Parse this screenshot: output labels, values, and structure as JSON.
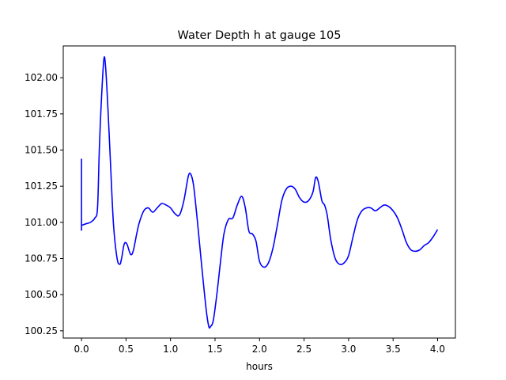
{
  "chart_data": {
    "type": "line",
    "title": "Water Depth h at gauge 105",
    "xlabel": "hours",
    "ylabel": "",
    "xlim": [
      -0.205,
      4.2
    ],
    "ylim": [
      100.2,
      102.22
    ],
    "xticks": [
      0.0,
      0.5,
      1.0,
      1.5,
      2.0,
      2.5,
      3.0,
      3.5,
      4.0
    ],
    "xtick_labels": [
      "0.0",
      "0.5",
      "1.0",
      "1.5",
      "2.0",
      "2.5",
      "3.0",
      "3.5",
      "4.0"
    ],
    "yticks": [
      100.25,
      100.5,
      100.75,
      101.0,
      101.25,
      101.5,
      101.75,
      102.0
    ],
    "ytick_labels": [
      "100.25",
      "100.50",
      "100.75",
      "101.00",
      "101.25",
      "101.50",
      "101.75",
      "102.00"
    ],
    "grid": false,
    "legend": "none",
    "series": [
      {
        "color": "#0000ff",
        "x": [
          0.0,
          0.0,
          0.005,
          0.05,
          0.1,
          0.15,
          0.18,
          0.2,
          0.22,
          0.25,
          0.27,
          0.3,
          0.33,
          0.36,
          0.4,
          0.43,
          0.45,
          0.48,
          0.51,
          0.55,
          0.58,
          0.62,
          0.65,
          0.7,
          0.75,
          0.8,
          0.85,
          0.9,
          0.95,
          1.0,
          1.05,
          1.1,
          1.15,
          1.2,
          1.23,
          1.26,
          1.3,
          1.35,
          1.4,
          1.43,
          1.45,
          1.48,
          1.52,
          1.56,
          1.6,
          1.65,
          1.7,
          1.75,
          1.8,
          1.84,
          1.88,
          1.92,
          1.96,
          2.0,
          2.05,
          2.1,
          2.15,
          2.2,
          2.25,
          2.3,
          2.35,
          2.4,
          2.45,
          2.5,
          2.55,
          2.6,
          2.63,
          2.66,
          2.7,
          2.73,
          2.76,
          2.8,
          2.85,
          2.9,
          2.95,
          3.0,
          3.05,
          3.1,
          3.15,
          3.2,
          3.25,
          3.3,
          3.35,
          3.4,
          3.45,
          3.5,
          3.55,
          3.6,
          3.65,
          3.7,
          3.75,
          3.8,
          3.85,
          3.9,
          3.95,
          4.0
        ],
        "y": [
          101.44,
          100.98,
          100.98,
          100.99,
          101.0,
          101.03,
          101.1,
          101.5,
          101.8,
          102.12,
          102.08,
          101.75,
          101.35,
          100.98,
          100.75,
          100.71,
          100.75,
          100.85,
          100.85,
          100.78,
          100.8,
          100.92,
          101.0,
          101.08,
          101.1,
          101.07,
          101.1,
          101.13,
          101.12,
          101.1,
          101.06,
          101.05,
          101.15,
          101.32,
          101.33,
          101.25,
          101.02,
          100.7,
          100.4,
          100.28,
          100.28,
          100.32,
          100.5,
          100.72,
          100.92,
          101.02,
          101.03,
          101.12,
          101.18,
          101.1,
          100.94,
          100.92,
          100.87,
          100.73,
          100.69,
          100.72,
          100.82,
          100.98,
          101.15,
          101.23,
          101.25,
          101.23,
          101.17,
          101.14,
          101.15,
          101.21,
          101.31,
          101.28,
          101.15,
          101.12,
          101.05,
          100.88,
          100.75,
          100.71,
          100.72,
          100.77,
          100.9,
          101.02,
          101.08,
          101.1,
          101.1,
          101.08,
          101.1,
          101.12,
          101.11,
          101.08,
          101.03,
          100.95,
          100.86,
          100.81,
          100.8,
          100.81,
          100.84,
          100.86,
          100.9,
          100.95
        ]
      }
    ]
  }
}
